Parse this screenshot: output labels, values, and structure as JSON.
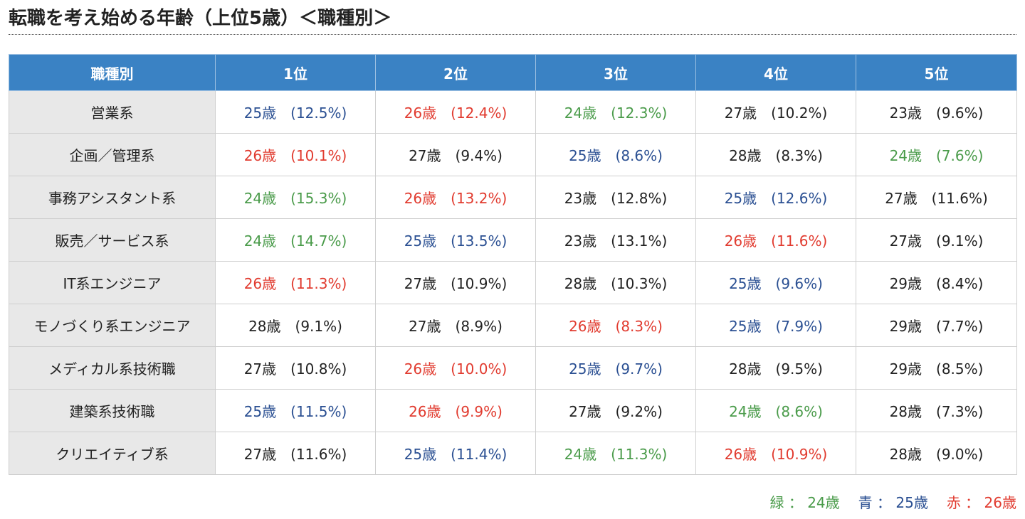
{
  "title": "転職を考え始める年齢（上位5歳）＜職種別＞",
  "table": {
    "headers": [
      "職種別",
      "1位",
      "2位",
      "3位",
      "4位",
      "5位"
    ],
    "rows": [
      {
        "label": "営業系",
        "cells": [
          {
            "text": "25歳　(12.5%)",
            "color": "blue"
          },
          {
            "text": "26歳　(12.4%)",
            "color": "red"
          },
          {
            "text": "24歳　(12.3%)",
            "color": "green"
          },
          {
            "text": "27歳　(10.2%)",
            "color": "plain"
          },
          {
            "text": "23歳　(9.6%)",
            "color": "plain"
          }
        ]
      },
      {
        "label": "企画／管理系",
        "cells": [
          {
            "text": "26歳　(10.1%)",
            "color": "red"
          },
          {
            "text": "27歳　(9.4%)",
            "color": "plain"
          },
          {
            "text": "25歳　(8.6%)",
            "color": "blue"
          },
          {
            "text": "28歳　(8.3%)",
            "color": "plain"
          },
          {
            "text": "24歳　(7.6%)",
            "color": "green"
          }
        ]
      },
      {
        "label": "事務アシスタント系",
        "cells": [
          {
            "text": "24歳　(15.3%)",
            "color": "green"
          },
          {
            "text": "26歳　(13.2%)",
            "color": "red"
          },
          {
            "text": "23歳　(12.8%)",
            "color": "plain"
          },
          {
            "text": "25歳　(12.6%)",
            "color": "blue"
          },
          {
            "text": "27歳　(11.6%)",
            "color": "plain"
          }
        ]
      },
      {
        "label": "販売／サービス系",
        "cells": [
          {
            "text": "24歳　(14.7%)",
            "color": "green"
          },
          {
            "text": "25歳　(13.5%)",
            "color": "blue"
          },
          {
            "text": "23歳　(13.1%)",
            "color": "plain"
          },
          {
            "text": "26歳　(11.6%)",
            "color": "red"
          },
          {
            "text": "27歳　(9.1%)",
            "color": "plain"
          }
        ]
      },
      {
        "label": "IT系エンジニア",
        "cells": [
          {
            "text": "26歳　(11.3%)",
            "color": "red"
          },
          {
            "text": "27歳　(10.9%)",
            "color": "plain"
          },
          {
            "text": "28歳　(10.3%)",
            "color": "plain"
          },
          {
            "text": "25歳　(9.6%)",
            "color": "blue"
          },
          {
            "text": "29歳　(8.4%)",
            "color": "plain"
          }
        ]
      },
      {
        "label": "モノづくり系エンジニア",
        "cells": [
          {
            "text": "28歳　(9.1%)",
            "color": "plain"
          },
          {
            "text": "27歳　(8.9%)",
            "color": "plain"
          },
          {
            "text": "26歳　(8.3%)",
            "color": "red"
          },
          {
            "text": "25歳　(7.9%)",
            "color": "blue"
          },
          {
            "text": "29歳　(7.7%)",
            "color": "plain"
          }
        ]
      },
      {
        "label": "メディカル系技術職",
        "cells": [
          {
            "text": "27歳　(10.8%)",
            "color": "plain"
          },
          {
            "text": "26歳　(10.0%)",
            "color": "red"
          },
          {
            "text": "25歳　(9.7%)",
            "color": "blue"
          },
          {
            "text": "28歳　(9.5%)",
            "color": "plain"
          },
          {
            "text": "29歳　(8.5%)",
            "color": "plain"
          }
        ]
      },
      {
        "label": "建築系技術職",
        "cells": [
          {
            "text": "25歳　(11.5%)",
            "color": "blue"
          },
          {
            "text": "26歳　(9.9%)",
            "color": "red"
          },
          {
            "text": "27歳　(9.2%)",
            "color": "plain"
          },
          {
            "text": "24歳　(8.6%)",
            "color": "green"
          },
          {
            "text": "28歳　(7.3%)",
            "color": "plain"
          }
        ]
      },
      {
        "label": "クリエイティブ系",
        "cells": [
          {
            "text": "27歳　(11.6%)",
            "color": "plain"
          },
          {
            "text": "25歳　(11.4%)",
            "color": "blue"
          },
          {
            "text": "24歳　(11.3%)",
            "color": "green"
          },
          {
            "text": "26歳　(10.9%)",
            "color": "red"
          },
          {
            "text": "28歳　(9.0%)",
            "color": "plain"
          }
        ]
      }
    ]
  },
  "legend": [
    {
      "text": "緑 ： 24歳",
      "color": "green"
    },
    {
      "text": "青 ： 25歳",
      "color": "blue"
    },
    {
      "text": "赤 ： 26歳",
      "color": "red"
    }
  ],
  "colors": {
    "header_bg": "#3a82c4",
    "label_bg": "#e8e8e8",
    "green": "#4a9b4a",
    "blue": "#2a4f92",
    "red": "#e13b2f"
  }
}
